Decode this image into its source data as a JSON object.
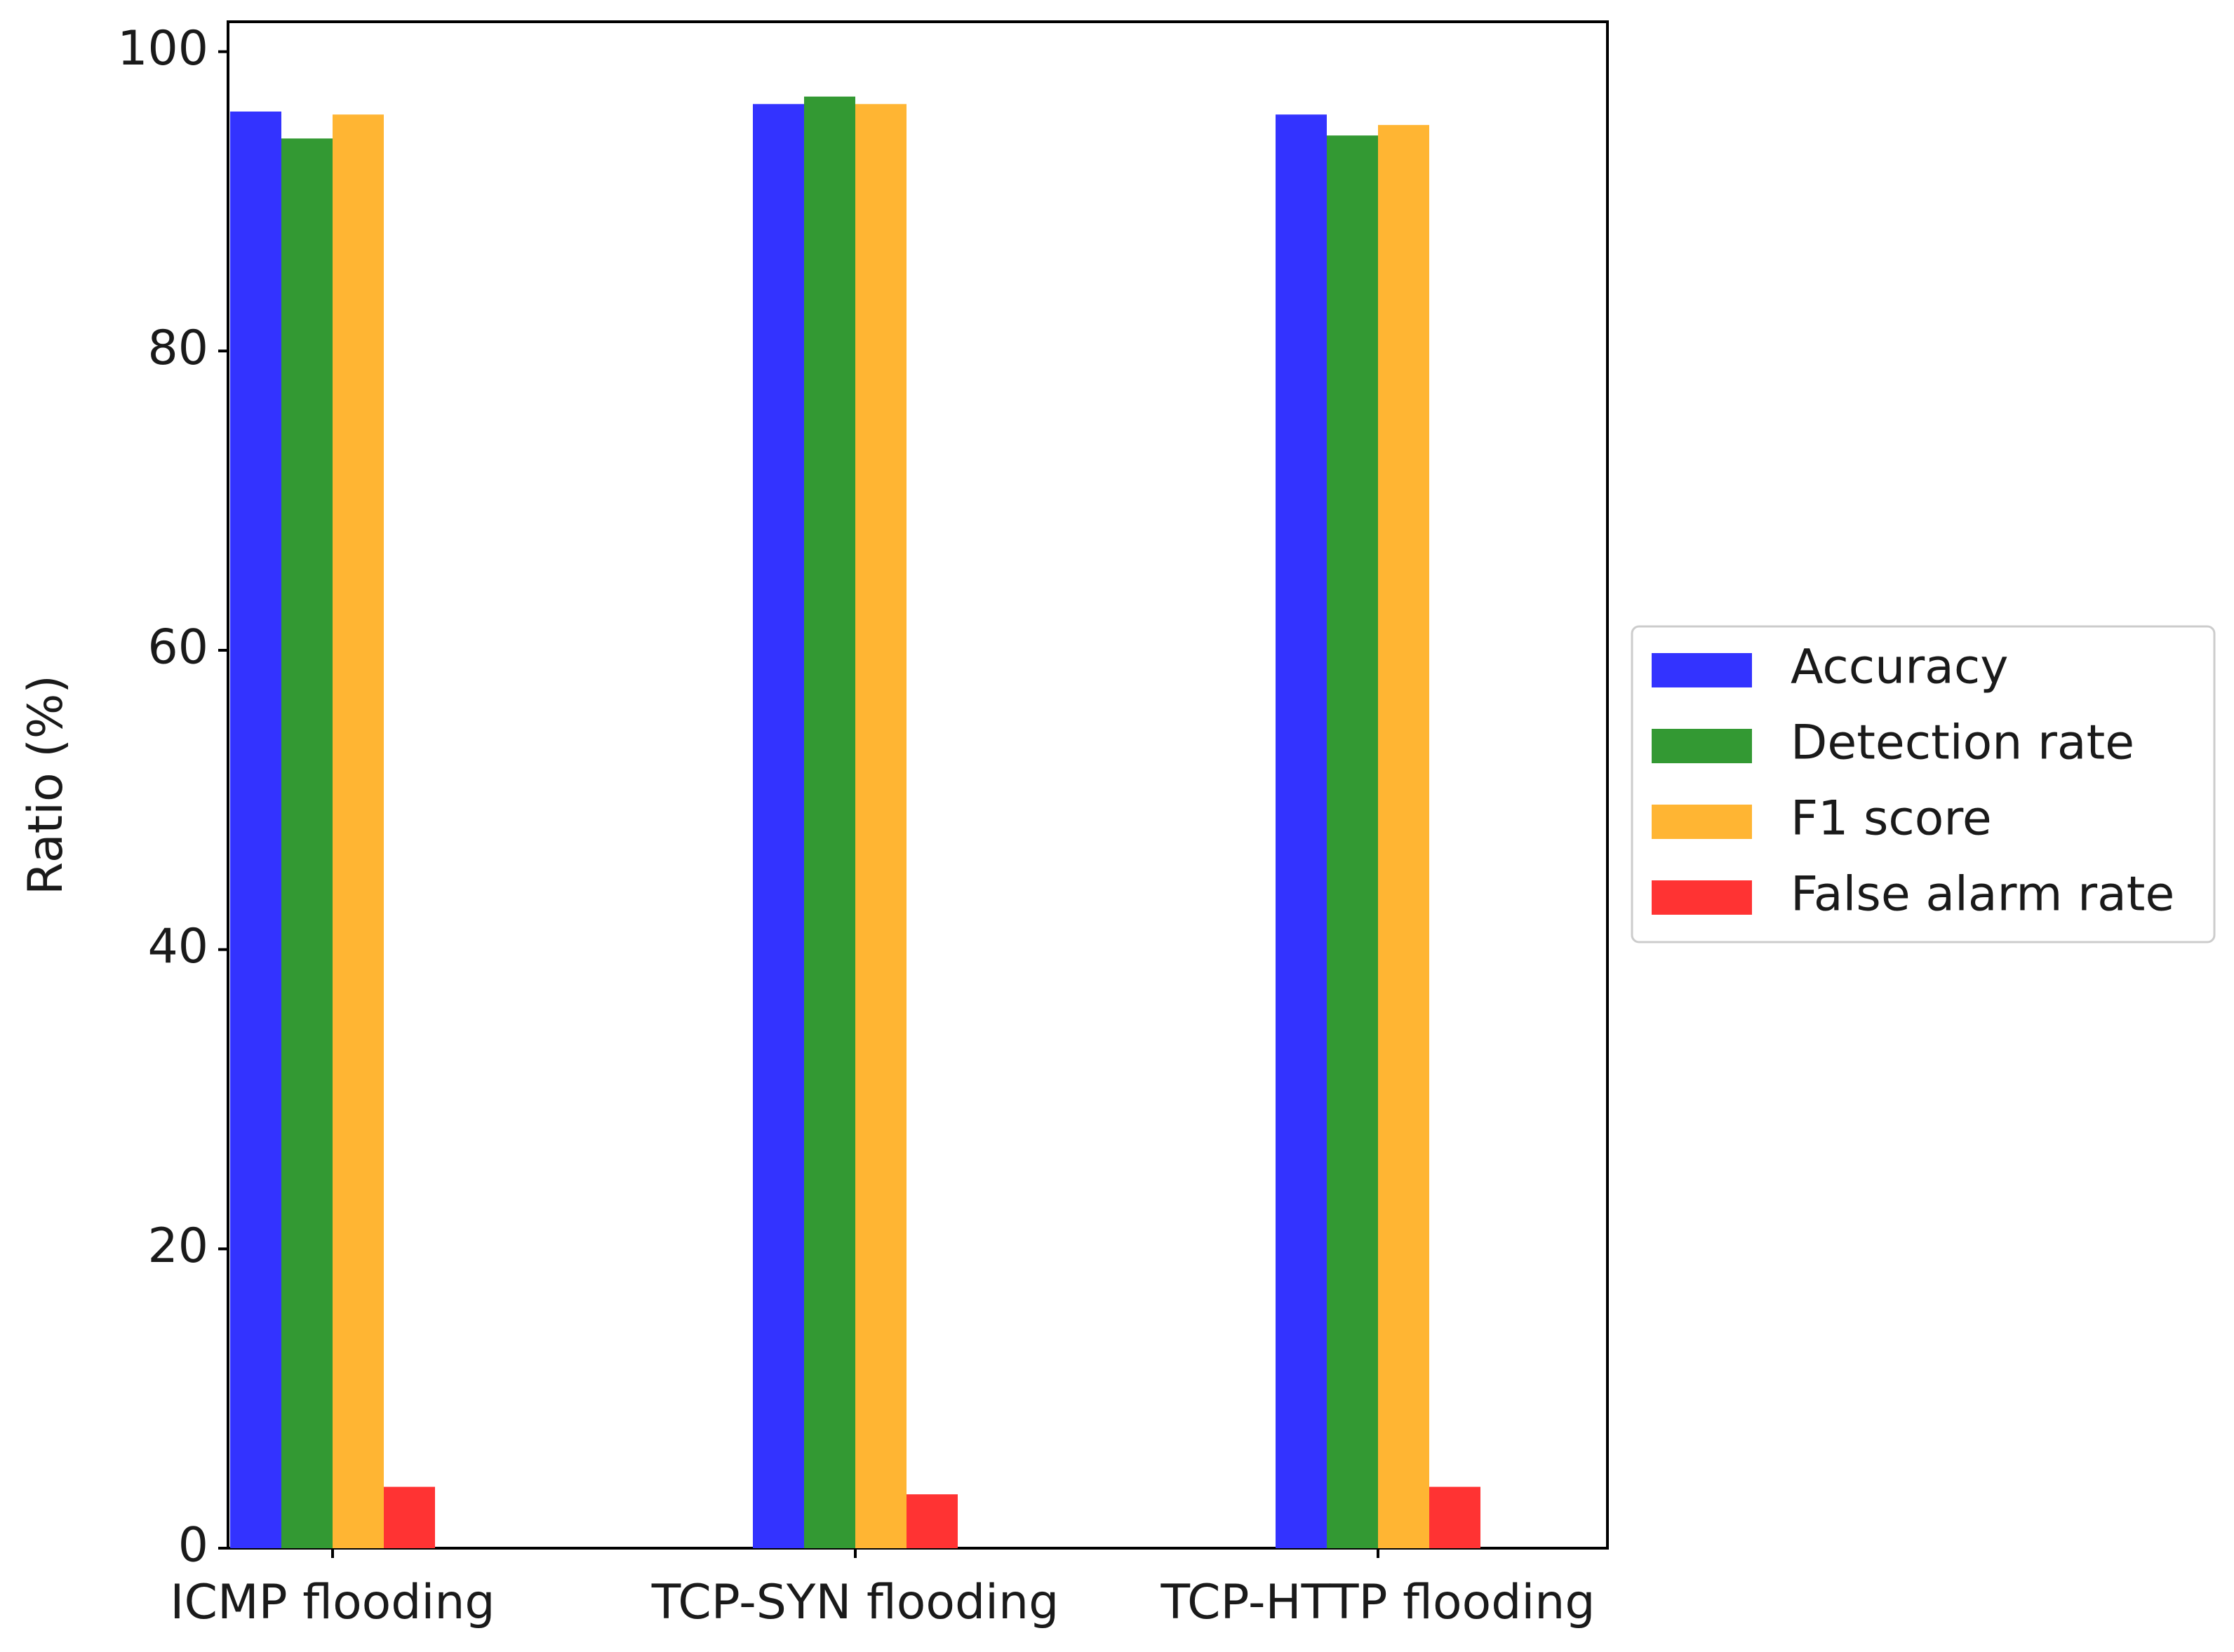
{
  "chart_data": {
    "type": "bar",
    "title": "",
    "xlabel": "",
    "ylabel": "Ratio (%)",
    "ylim": [
      0,
      102
    ],
    "yticks": [
      0,
      20,
      40,
      60,
      80,
      100
    ],
    "categories": [
      "ICMP flooding",
      "TCP-SYN flooding",
      "TCP-HTTP flooding"
    ],
    "series": [
      {
        "name": "Accuracy",
        "color": "#3333ff",
        "values": [
          96.0,
          96.5,
          95.8
        ]
      },
      {
        "name": "Detection rate",
        "color": "#339933",
        "values": [
          94.2,
          97.0,
          94.4
        ]
      },
      {
        "name": "F1 score",
        "color": "#ffb533",
        "values": [
          95.8,
          96.5,
          95.1
        ]
      },
      {
        "name": "False alarm rate",
        "color": "#ff3333",
        "values": [
          4.1,
          3.6,
          4.1
        ]
      }
    ],
    "grid": false,
    "legend_position": "right"
  }
}
